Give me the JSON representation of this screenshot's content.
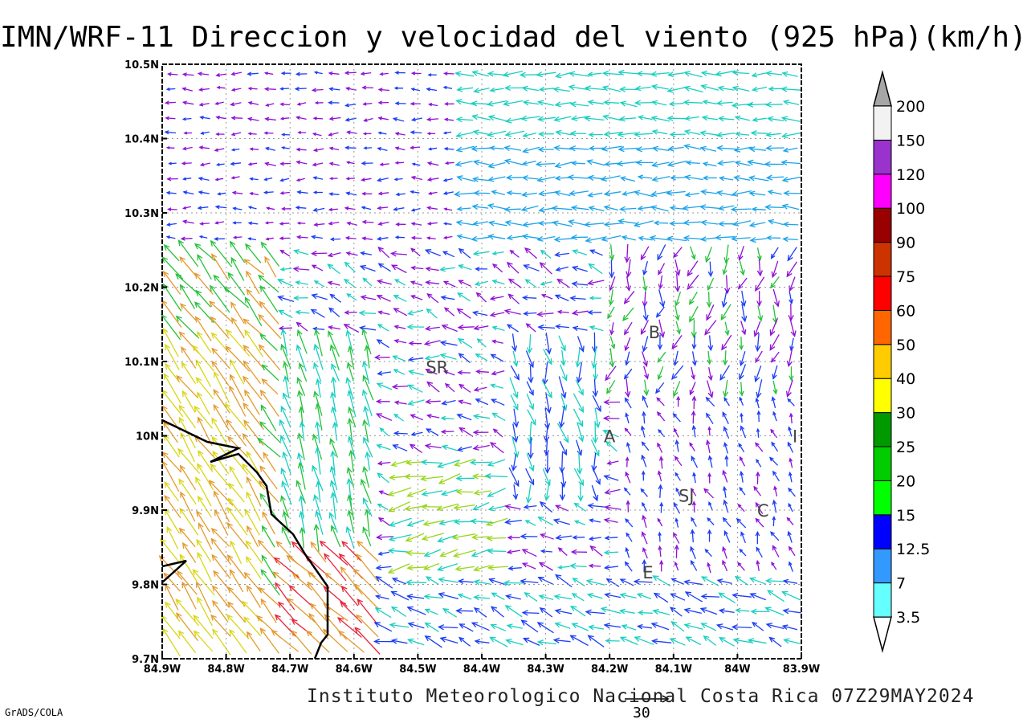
{
  "title": "IMN/WRF-11 Direccion y velocidad del viento (925 hPa)(km/h)",
  "footer": "Instituto Meteorologico Nacional Costa Rica 07Z29MAY2024",
  "software": "GrADS/COLA",
  "reference_vector_label": "30",
  "map": {
    "x_ticks": [
      "84.9W",
      "84.8W",
      "84.7W",
      "84.6W",
      "84.5W",
      "84.4W",
      "84.3W",
      "84.2W",
      "84.1W",
      "84W",
      "83.9W"
    ],
    "y_ticks": [
      "9.7N",
      "9.8N",
      "9.9N",
      "10N",
      "10.1N",
      "10.2N",
      "10.3N",
      "10.4N",
      "10.5N"
    ],
    "lon_range": [
      -84.9,
      -83.9
    ],
    "lat_range": [
      9.7,
      10.5
    ],
    "grid": "dotted",
    "city_labels": [
      {
        "text": "SR",
        "lon": -84.47,
        "lat": 10.093
      },
      {
        "text": "B",
        "lon": -84.13,
        "lat": 10.14
      },
      {
        "text": "A",
        "lon": -84.2,
        "lat": 10.0
      },
      {
        "text": "I",
        "lon": -83.91,
        "lat": 10.0
      },
      {
        "text": "SJ",
        "lon": -84.08,
        "lat": 9.92
      },
      {
        "text": "C",
        "lon": -83.96,
        "lat": 9.9
      },
      {
        "text": "E",
        "lon": -84.14,
        "lat": 9.817
      }
    ]
  },
  "colorbar": {
    "levels": [
      "3.5",
      "7",
      "12.5",
      "15",
      "20",
      "25",
      "30",
      "40",
      "50",
      "60",
      "75",
      "90",
      "100",
      "120",
      "150",
      "200"
    ],
    "colors": [
      "#ffffff",
      "#66ffff",
      "#3399ff",
      "#0000ff",
      "#00ff00",
      "#00cc00",
      "#009900",
      "#ffff00",
      "#ffcc00",
      "#ff6600",
      "#ff0000",
      "#cc3300",
      "#990000",
      "#ff00ff",
      "#9933cc",
      "#f2f2f2",
      "#a6a6a6"
    ]
  },
  "palette": {
    "purple": "#8f10d6",
    "blue": "#1b3df5",
    "lightblue": "#1aa3ea",
    "cyan": "#19cfc0",
    "green": "#25c23a",
    "lightgreen": "#9ad61a",
    "yellow": "#d9d616",
    "orange": "#e49a2d",
    "red": "#e8233a"
  }
}
